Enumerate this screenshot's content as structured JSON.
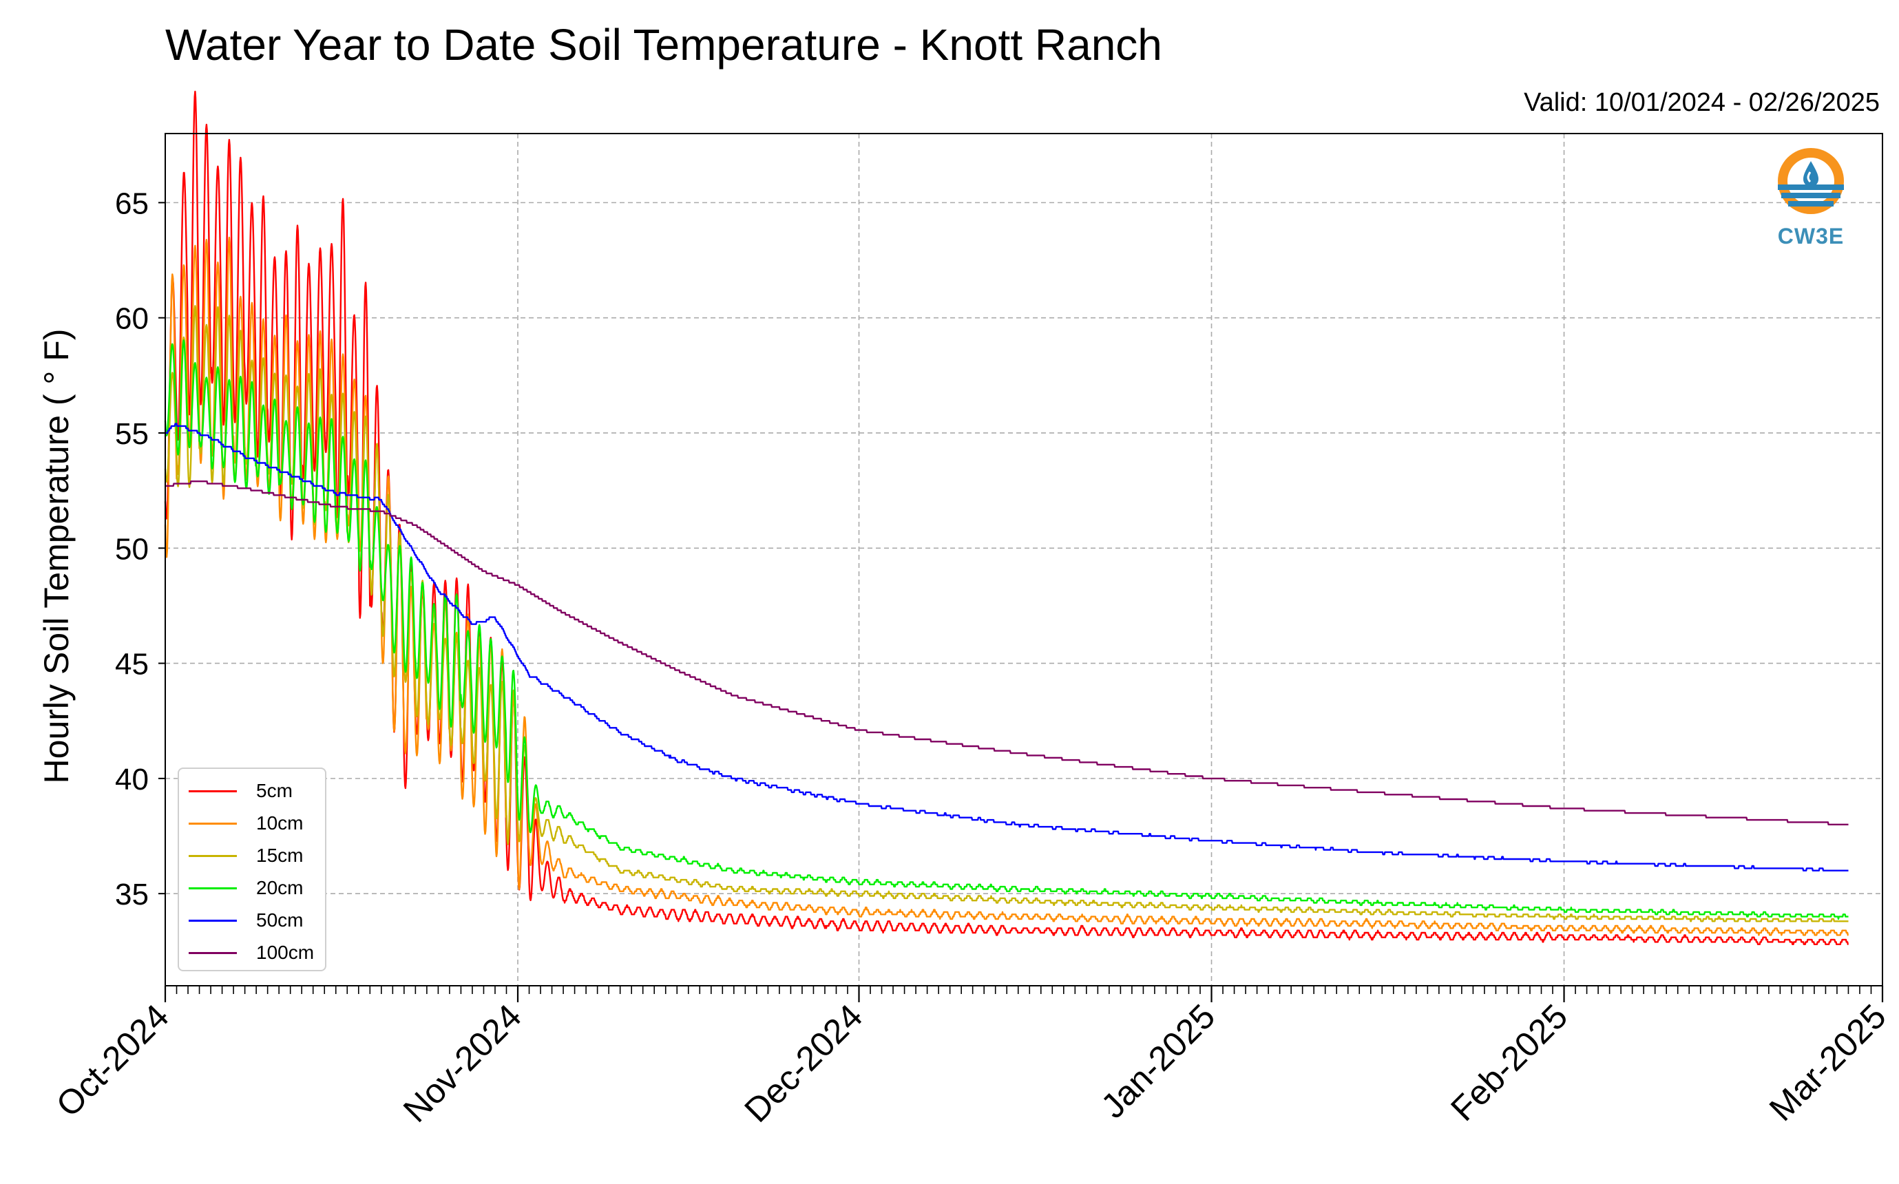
{
  "chart_data": {
    "type": "line",
    "title": "Water Year to Date Soil Temperature - Knott Ranch",
    "subtitle": "Valid: 10/01/2024 - 02/26/2025",
    "ylabel": "Hourly Soil Temperature ( ° F)",
    "xlabel": "",
    "x_tick_labels": [
      "Oct-2024",
      "Nov-2024",
      "Dec-2024",
      "Jan-2025",
      "Feb-2025",
      "Mar-2025"
    ],
    "x_range": [
      "2024-10-01",
      "2025-03-01"
    ],
    "y_ticks": [
      35,
      40,
      45,
      50,
      55,
      60,
      65
    ],
    "ylim": [
      31,
      68
    ],
    "grid": true,
    "legend_position": "lower-left",
    "logo": "CW3E",
    "series": [
      {
        "name": "5cm",
        "color": "#ff0000",
        "values": [
          [
            "2024-10-01",
            55
          ],
          [
            "2024-10-03",
            63
          ],
          [
            "2024-10-05",
            62
          ],
          [
            "2024-10-08",
            61
          ],
          [
            "2024-10-12",
            57
          ],
          [
            "2024-10-16",
            59
          ],
          [
            "2024-10-20",
            51
          ],
          [
            "2024-10-22",
            45
          ],
          [
            "2024-10-26",
            45
          ],
          [
            "2024-10-29",
            43
          ],
          [
            "2024-11-01",
            39
          ],
          [
            "2024-11-03",
            36
          ],
          [
            "2024-11-05",
            35
          ],
          [
            "2024-11-10",
            34.3
          ],
          [
            "2024-11-20",
            33.9
          ],
          [
            "2024-12-01",
            33.6
          ],
          [
            "2024-12-15",
            33.4
          ],
          [
            "2025-01-01",
            33.3
          ],
          [
            "2025-01-15",
            33.2
          ],
          [
            "2025-02-01",
            33.1
          ],
          [
            "2025-02-26",
            32.9
          ]
        ]
      },
      {
        "name": "10cm",
        "color": "#ff8c00",
        "values": [
          [
            "2024-10-01",
            55
          ],
          [
            "2024-10-03",
            59
          ],
          [
            "2024-10-06",
            58
          ],
          [
            "2024-10-10",
            56
          ],
          [
            "2024-10-14",
            55
          ],
          [
            "2024-10-18",
            54
          ],
          [
            "2024-10-20",
            50
          ],
          [
            "2024-10-22",
            45
          ],
          [
            "2024-10-26",
            44
          ],
          [
            "2024-10-29",
            42
          ],
          [
            "2024-11-01",
            40
          ],
          [
            "2024-11-03",
            37
          ],
          [
            "2024-11-05",
            36
          ],
          [
            "2024-11-10",
            35.2
          ],
          [
            "2024-11-20",
            34.6
          ],
          [
            "2024-12-01",
            34.2
          ],
          [
            "2024-12-15",
            34.0
          ],
          [
            "2025-01-01",
            33.8
          ],
          [
            "2025-01-15",
            33.7
          ],
          [
            "2025-02-01",
            33.5
          ],
          [
            "2025-02-26",
            33.3
          ]
        ]
      },
      {
        "name": "15cm",
        "color": "#c8b400",
        "values": [
          [
            "2024-10-01",
            55
          ],
          [
            "2024-10-04",
            57
          ],
          [
            "2024-10-08",
            56
          ],
          [
            "2024-10-12",
            55
          ],
          [
            "2024-10-16",
            54
          ],
          [
            "2024-10-19",
            52
          ],
          [
            "2024-10-21",
            48
          ],
          [
            "2024-10-24",
            45
          ],
          [
            "2024-10-28",
            43
          ],
          [
            "2024-11-01",
            40
          ],
          [
            "2024-11-03",
            38
          ],
          [
            "2024-11-05",
            37.5
          ],
          [
            "2024-11-10",
            36
          ],
          [
            "2024-11-20",
            35.2
          ],
          [
            "2024-12-01",
            35.0
          ],
          [
            "2024-12-15",
            34.7
          ],
          [
            "2025-01-01",
            34.4
          ],
          [
            "2025-01-15",
            34.2
          ],
          [
            "2025-02-01",
            34.0
          ],
          [
            "2025-02-26",
            33.8
          ]
        ]
      },
      {
        "name": "20cm",
        "color": "#00ee00",
        "values": [
          [
            "2024-10-01",
            57
          ],
          [
            "2024-10-04",
            56
          ],
          [
            "2024-10-08",
            55
          ],
          [
            "2024-10-12",
            54
          ],
          [
            "2024-10-16",
            53
          ],
          [
            "2024-10-19",
            51
          ],
          [
            "2024-10-21",
            48
          ],
          [
            "2024-10-24",
            46
          ],
          [
            "2024-10-28",
            44.5
          ],
          [
            "2024-10-31",
            43
          ],
          [
            "2024-11-02",
            39
          ],
          [
            "2024-11-05",
            38.5
          ],
          [
            "2024-11-10",
            37
          ],
          [
            "2024-11-20",
            36
          ],
          [
            "2024-12-01",
            35.5
          ],
          [
            "2024-12-15",
            35.2
          ],
          [
            "2025-01-01",
            34.9
          ],
          [
            "2025-01-15",
            34.6
          ],
          [
            "2025-02-01",
            34.3
          ],
          [
            "2025-02-26",
            34.0
          ]
        ]
      },
      {
        "name": "50cm",
        "color": "#0000ff",
        "values": [
          [
            "2024-10-01",
            55
          ],
          [
            "2024-10-02",
            55.4
          ],
          [
            "2024-10-05",
            54.8
          ],
          [
            "2024-10-08",
            54.0
          ],
          [
            "2024-10-12",
            53.2
          ],
          [
            "2024-10-16",
            52.4
          ],
          [
            "2024-10-20",
            52.1
          ],
          [
            "2024-10-22",
            50.5
          ],
          [
            "2024-10-25",
            48.2
          ],
          [
            "2024-10-28",
            46.7
          ],
          [
            "2024-10-30",
            47.0
          ],
          [
            "2024-11-02",
            44.5
          ],
          [
            "2024-11-05",
            43.6
          ],
          [
            "2024-11-10",
            42.0
          ],
          [
            "2024-11-15",
            40.8
          ],
          [
            "2024-11-20",
            40.0
          ],
          [
            "2024-12-01",
            38.9
          ],
          [
            "2024-12-15",
            38.0
          ],
          [
            "2025-01-01",
            37.3
          ],
          [
            "2025-01-15",
            36.8
          ],
          [
            "2025-02-01",
            36.4
          ],
          [
            "2025-02-26",
            36.0
          ]
        ]
      },
      {
        "name": "100cm",
        "color": "#800060",
        "values": [
          [
            "2024-10-01",
            52.7
          ],
          [
            "2024-10-04",
            52.9
          ],
          [
            "2024-10-08",
            52.6
          ],
          [
            "2024-10-12",
            52.2
          ],
          [
            "2024-10-16",
            51.8
          ],
          [
            "2024-10-20",
            51.6
          ],
          [
            "2024-10-23",
            51.0
          ],
          [
            "2024-10-26",
            50.0
          ],
          [
            "2024-10-29",
            49.0
          ],
          [
            "2024-11-01",
            48.4
          ],
          [
            "2024-11-05",
            47.2
          ],
          [
            "2024-11-10",
            45.9
          ],
          [
            "2024-11-15",
            44.7
          ],
          [
            "2024-11-20",
            43.6
          ],
          [
            "2024-12-01",
            42.1
          ],
          [
            "2024-12-15",
            41.1
          ],
          [
            "2025-01-01",
            40.0
          ],
          [
            "2025-01-15",
            39.4
          ],
          [
            "2025-02-01",
            38.7
          ],
          [
            "2025-02-26",
            38.0
          ]
        ]
      }
    ]
  }
}
